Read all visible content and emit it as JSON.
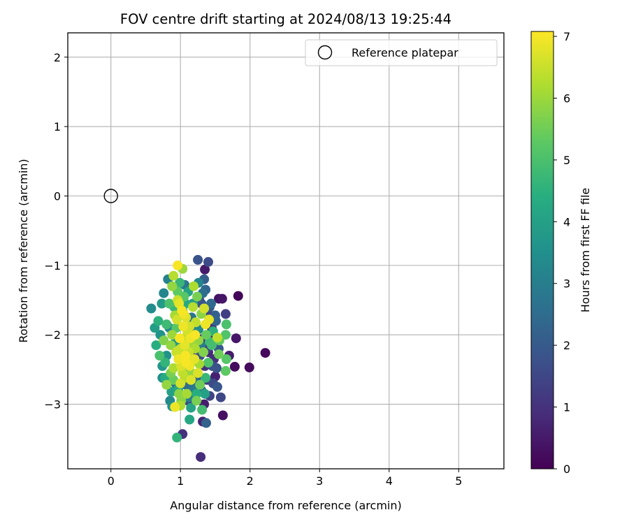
{
  "chart_data": {
    "type": "scatter",
    "title": "FOV centre drift starting at 2024/08/13 19:25:44",
    "xlabel": "Angular distance from reference (arcmin)",
    "ylabel": "Rotation from reference (arcmin)",
    "xlim": [
      -0.62,
      5.65
    ],
    "ylim": [
      -3.93,
      2.35
    ],
    "x_ticks": [
      0,
      1,
      2,
      3,
      4,
      5
    ],
    "y_ticks": [
      -3,
      -2,
      -1,
      0,
      1,
      2
    ],
    "grid": true,
    "legend": {
      "placement": "top-right",
      "entries": [
        {
          "label": "Reference platepar",
          "marker": "open-circle",
          "color": "#000000"
        }
      ]
    },
    "reference_point": {
      "x": 0,
      "y": 0
    },
    "colorbar": {
      "label": "Hours from first FF file",
      "range": [
        0,
        7.08
      ],
      "ticks": [
        0,
        1,
        2,
        3,
        4,
        5,
        6,
        7
      ],
      "colormap": "viridis"
    },
    "points": [
      [
        1.83,
        -1.44,
        0.1
      ],
      [
        2.22,
        -2.26,
        0.15
      ],
      [
        1.99,
        -2.47,
        0.2
      ],
      [
        1.78,
        -2.46,
        0.25
      ],
      [
        1.61,
        -3.16,
        0.3
      ],
      [
        1.55,
        -1.48,
        0.35
      ],
      [
        1.6,
        -1.48,
        0.4
      ],
      [
        1.35,
        -1.06,
        0.5
      ],
      [
        1.34,
        -3.0,
        0.6
      ],
      [
        1.32,
        -3.25,
        0.7
      ],
      [
        1.29,
        -3.76,
        0.9
      ],
      [
        1.03,
        -3.43,
        1.0
      ],
      [
        1.8,
        -2.05,
        0.45
      ],
      [
        1.7,
        -2.3,
        0.55
      ],
      [
        1.5,
        -2.6,
        0.65
      ],
      [
        1.45,
        -1.9,
        0.75
      ],
      [
        1.65,
        -1.7,
        1.3
      ],
      [
        1.58,
        -2.9,
        1.5
      ],
      [
        1.4,
        -0.95,
        1.6
      ],
      [
        1.25,
        -0.92,
        1.8
      ],
      [
        1.53,
        -2.75,
        1.9
      ],
      [
        1.46,
        -2.45,
        1.7
      ],
      [
        1.38,
        -2.2,
        1.4
      ],
      [
        1.42,
        -1.6,
        2.0
      ],
      [
        1.37,
        -3.27,
        2.2
      ],
      [
        1.51,
        -1.8,
        2.3
      ],
      [
        1.3,
        -2.8,
        2.4
      ],
      [
        1.2,
        -2.65,
        2.5
      ],
      [
        0.93,
        -2.7,
        2.6
      ],
      [
        1.06,
        -1.28,
        2.8
      ],
      [
        1.34,
        -1.2,
        2.1
      ],
      [
        1.27,
        -1.5,
        1.2
      ],
      [
        1.33,
        -2.05,
        1.1
      ],
      [
        1.48,
        -2.35,
        0.95
      ],
      [
        1.22,
        -2.3,
        1.25
      ],
      [
        1.11,
        -2.95,
        1.45
      ],
      [
        1.16,
        -1.75,
        2.7
      ],
      [
        0.82,
        -1.2,
        3.1
      ],
      [
        0.84,
        -1.9,
        3.3
      ],
      [
        0.58,
        -1.62,
        3.4
      ],
      [
        0.8,
        -2.3,
        3.6
      ],
      [
        0.74,
        -2.45,
        3.7
      ],
      [
        0.88,
        -3.03,
        3.5
      ],
      [
        0.93,
        -2.1,
        3.8
      ],
      [
        0.63,
        -1.9,
        3.9
      ],
      [
        0.76,
        -1.4,
        3.2
      ],
      [
        1.07,
        -2.55,
        3.0
      ],
      [
        1.29,
        -2.15,
        2.9
      ],
      [
        1.19,
        -1.95,
        3.15
      ],
      [
        1.03,
        -1.65,
        3.45
      ],
      [
        1.35,
        -2.85,
        4.0
      ],
      [
        1.15,
        -3.05,
        4.1
      ],
      [
        1.13,
        -3.22,
        4.2
      ],
      [
        0.78,
        -2.62,
        4.3
      ],
      [
        0.65,
        -2.15,
        4.4
      ],
      [
        0.68,
        -1.8,
        4.5
      ],
      [
        0.95,
        -3.48,
        4.6
      ],
      [
        0.91,
        -1.6,
        4.7
      ],
      [
        1.42,
        -2.1,
        4.8
      ],
      [
        1.31,
        -3.08,
        4.9
      ],
      [
        1.66,
        -1.85,
        5.0
      ],
      [
        1.65,
        -2.0,
        5.1
      ],
      [
        1.66,
        -2.35,
        5.2
      ],
      [
        1.65,
        -2.52,
        5.3
      ],
      [
        1.56,
        -2.08,
        5.4
      ],
      [
        1.55,
        -2.28,
        5.5
      ],
      [
        1.23,
        -2.95,
        5.6
      ],
      [
        0.98,
        -2.85,
        5.8
      ],
      [
        0.8,
        -2.72,
        5.9
      ],
      [
        0.76,
        -2.08,
        5.7
      ],
      [
        0.7,
        -2.3,
        5.0
      ],
      [
        0.88,
        -1.3,
        5.9
      ],
      [
        1.03,
        -1.05,
        6.0
      ],
      [
        1.09,
        -2.85,
        6.1
      ],
      [
        1.0,
        -3.02,
        6.2
      ],
      [
        0.9,
        -1.15,
        6.3
      ],
      [
        0.96,
        -1.5,
        6.5
      ],
      [
        1.34,
        -1.62,
        6.6
      ],
      [
        1.41,
        -1.78,
        6.8
      ],
      [
        1.36,
        -1.85,
        6.9
      ],
      [
        1.21,
        -2.0,
        7.0
      ],
      [
        0.96,
        -1.0,
        7.0
      ],
      [
        0.92,
        -3.04,
        6.9
      ],
      [
        1.0,
        -2.7,
        6.6
      ],
      [
        1.25,
        -2.55,
        6.7
      ],
      [
        1.53,
        -2.04,
        6.4
      ],
      [
        1.13,
        -2.45,
        6.9
      ],
      [
        1.19,
        -1.3,
        6.2
      ],
      [
        0.88,
        -2.0,
        6.0
      ],
      [
        0.94,
        -2.25,
        6.5
      ],
      [
        0.98,
        -1.55,
        6.8
      ],
      [
        1.02,
        -1.65,
        7.0
      ],
      [
        1.08,
        -1.75,
        6.7
      ],
      [
        1.04,
        -1.88,
        6.9
      ],
      [
        1.1,
        -1.95,
        6.6
      ],
      [
        0.99,
        -2.05,
        7.0
      ],
      [
        1.06,
        -2.15,
        6.8
      ],
      [
        1.12,
        -2.25,
        6.5
      ],
      [
        0.97,
        -2.35,
        6.9
      ],
      [
        1.03,
        -2.55,
        6.4
      ],
      [
        1.15,
        -2.65,
        6.7
      ],
      [
        1.08,
        -2.4,
        7.0
      ],
      [
        1.18,
        -1.6,
        6.3
      ],
      [
        0.95,
        -1.78,
        6.6
      ],
      [
        1.14,
        -2.05,
        6.9
      ],
      [
        1.0,
        -2.2,
        6.5
      ],
      [
        0.9,
        -2.48,
        6.2
      ],
      [
        1.2,
        -2.35,
        6.8
      ],
      [
        1.06,
        -2.62,
        6.3
      ],
      [
        0.92,
        -1.72,
        6.1
      ],
      [
        1.22,
        -1.82,
        6.4
      ],
      [
        1.17,
        -2.12,
        6.0
      ],
      [
        0.86,
        -2.15,
        5.9
      ],
      [
        1.27,
        -2.42,
        6.1
      ],
      [
        1.01,
        -2.95,
        5.8
      ],
      [
        0.86,
        -2.55,
        5.6
      ],
      [
        1.28,
        -2.72,
        5.5
      ],
      [
        1.33,
        -2.25,
        5.7
      ],
      [
        1.37,
        -2.0,
        5.4
      ],
      [
        1.3,
        -1.7,
        5.8
      ],
      [
        1.24,
        -1.45,
        5.6
      ],
      [
        0.96,
        -1.38,
        5.3
      ],
      [
        1.05,
        -1.45,
        5.2
      ],
      [
        0.84,
        -1.55,
        5.0
      ],
      [
        0.8,
        -1.85,
        4.8
      ],
      [
        0.78,
        -2.4,
        4.6
      ],
      [
        1.4,
        -2.4,
        5.1
      ],
      [
        1.45,
        -2.15,
        4.9
      ],
      [
        1.47,
        -1.95,
        4.5
      ],
      [
        1.36,
        -2.62,
        4.7
      ],
      [
        1.23,
        -2.85,
        4.4
      ],
      [
        0.97,
        -2.78,
        4.2
      ],
      [
        0.87,
        -2.82,
        4.0
      ],
      [
        1.11,
        -1.38,
        4.1
      ],
      [
        0.73,
        -1.55,
        3.8
      ],
      [
        0.71,
        -2.0,
        3.6
      ],
      [
        0.74,
        -2.62,
        3.5
      ],
      [
        0.85,
        -2.95,
        3.3
      ],
      [
        1.26,
        -1.25,
        3.2
      ],
      [
        1.32,
        -1.4,
        2.6
      ],
      [
        1.44,
        -1.55,
        2.4
      ],
      [
        1.5,
        -1.72,
        2.2
      ],
      [
        1.55,
        -2.2,
        2.0
      ],
      [
        1.52,
        -2.48,
        1.8
      ],
      [
        1.47,
        -2.7,
        1.6
      ],
      [
        1.42,
        -2.88,
        1.4
      ],
      [
        1.38,
        -2.65,
        1.2
      ],
      [
        1.35,
        -2.45,
        1.0
      ],
      [
        1.4,
        -2.25,
        0.8
      ],
      [
        1.49,
        -2.05,
        0.7
      ],
      [
        1.43,
        -1.85,
        1.1
      ],
      [
        1.39,
        -1.68,
        1.5
      ],
      [
        1.3,
        -1.55,
        1.9
      ],
      [
        1.36,
        -1.35,
        2.3
      ],
      [
        1.19,
        -2.78,
        2.8
      ],
      [
        1.12,
        -2.9,
        3.0
      ],
      [
        1.08,
        -2.72,
        2.5
      ],
      [
        1.24,
        -2.6,
        2.0
      ],
      [
        1.28,
        -2.3,
        1.7
      ],
      [
        1.26,
        -1.92,
        3.4
      ],
      [
        1.18,
        -1.55,
        3.9
      ],
      [
        1.07,
        -1.55,
        4.3
      ],
      [
        0.99,
        -1.25,
        4.7
      ],
      [
        0.94,
        -1.9,
        5.2
      ],
      [
        0.9,
        -2.65,
        5.4
      ],
      [
        1.16,
        -2.55,
        5.9
      ],
      [
        1.09,
        -2.02,
        6.3
      ],
      [
        1.13,
        -1.88,
        6.6
      ],
      [
        1.05,
        -1.7,
        6.9
      ],
      [
        1.01,
        -2.45,
        6.7
      ],
      [
        1.07,
        -2.3,
        7.0
      ],
      [
        1.21,
        -2.2,
        6.2
      ],
      [
        1.26,
        -2.08,
        5.9
      ],
      [
        1.17,
        -2.38,
        6.1
      ]
    ]
  }
}
